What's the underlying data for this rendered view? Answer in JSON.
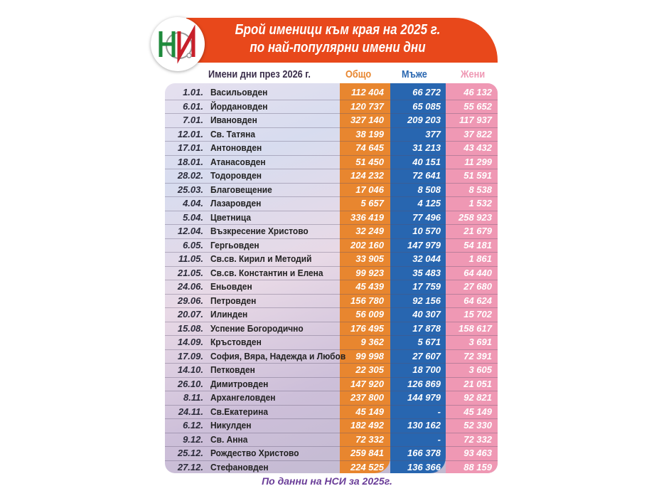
{
  "header": {
    "title_line1": "Брой именици към края на 2025 г.",
    "title_line2": "по най-популярни имени дни",
    "logo_text": "НСИ"
  },
  "colors": {
    "banner": "#e8481b",
    "total": "#e8862f",
    "men": "#2866b0",
    "women": "#ef98b4",
    "footer": "#6a3d98"
  },
  "chart_data": {
    "type": "table",
    "columns": [
      "Имени дни през 2026 г.",
      "Общо",
      "Мъже",
      "Жени"
    ],
    "rows": [
      [
        "1.01.",
        "Васильовден",
        "112 404",
        "66 272",
        "46 132"
      ],
      [
        "6.01.",
        "Йордановден",
        "120 737",
        "65 085",
        "55 652"
      ],
      [
        "7.01.",
        "Ивановден",
        "327 140",
        "209 203",
        "117 937"
      ],
      [
        "12.01.",
        "Св. Татяна",
        "38 199",
        "377",
        "37 822"
      ],
      [
        "17.01.",
        "Антоновден",
        "74 645",
        "31 213",
        "43 432"
      ],
      [
        "18.01.",
        "Атанасовден",
        "51 450",
        "40 151",
        "11 299"
      ],
      [
        "28.02.",
        "Тодоровден",
        "124 232",
        "72 641",
        "51 591"
      ],
      [
        "25.03.",
        "Благовещение",
        "17 046",
        "8 508",
        "8 538"
      ],
      [
        "4.04.",
        "Лазаровден",
        "5 657",
        "4 125",
        "1 532"
      ],
      [
        "5.04.",
        "Цветница",
        "336 419",
        "77 496",
        "258 923"
      ],
      [
        "12.04.",
        "Възкресение Христово",
        "32 249",
        "10 570",
        "21 679"
      ],
      [
        "6.05.",
        "Гергьовден",
        "202 160",
        "147 979",
        "54 181"
      ],
      [
        "11.05.",
        "Св.св. Кирил и Методий",
        "33 905",
        "32 044",
        "1 861"
      ],
      [
        "21.05.",
        "Св.св. Константин и Елена",
        "99 923",
        "35 483",
        "64 440"
      ],
      [
        "24.06.",
        "Еньовден",
        "45 439",
        "17 759",
        "27 680"
      ],
      [
        "29.06.",
        "Петровден",
        "156 780",
        "92 156",
        "64 624"
      ],
      [
        "20.07.",
        "Илинден",
        "56 009",
        "40 307",
        "15 702"
      ],
      [
        "15.08.",
        "Успение Богородично",
        "176 495",
        "17 878",
        "158 617"
      ],
      [
        "14.09.",
        "Кръстовден",
        "9 362",
        "5 671",
        "3 691"
      ],
      [
        "17.09.",
        "София, Вяра, Надежда и Любов",
        "99 998",
        "27 607",
        "72 391"
      ],
      [
        "14.10.",
        "Петковден",
        "22 305",
        "18 700",
        "3 605"
      ],
      [
        "26.10.",
        "Димитровден",
        "147 920",
        "126 869",
        "21 051"
      ],
      [
        "8.11.",
        "Архангеловден",
        "237 800",
        "144 979",
        "92 821"
      ],
      [
        "24.11.",
        "Св.Екатерина",
        "45 149",
        "-",
        "45 149"
      ],
      [
        "6.12.",
        "Никулден",
        "182 492",
        "130 162",
        "52 330"
      ],
      [
        "9.12.",
        "Св. Анна",
        "72 332",
        "-",
        "72 332"
      ],
      [
        "25.12.",
        "Рождество Христово",
        "259 841",
        "166 378",
        "93 463"
      ],
      [
        "27.12.",
        "Стефановден",
        "224 525",
        "136 366",
        "88 159"
      ]
    ]
  },
  "footer": "По данни на НСИ за 2025г."
}
